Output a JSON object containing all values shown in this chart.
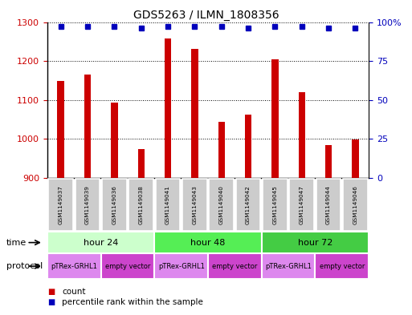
{
  "title": "GDS5263 / ILMN_1808356",
  "samples": [
    "GSM1149037",
    "GSM1149039",
    "GSM1149036",
    "GSM1149038",
    "GSM1149041",
    "GSM1149043",
    "GSM1149040",
    "GSM1149042",
    "GSM1149045",
    "GSM1149047",
    "GSM1149044",
    "GSM1149046"
  ],
  "counts": [
    1148,
    1165,
    1093,
    975,
    1258,
    1232,
    1045,
    1063,
    1205,
    1120,
    985,
    998
  ],
  "percentiles": [
    97,
    97,
    97,
    96,
    97,
    97,
    97,
    96,
    97,
    97,
    96,
    96
  ],
  "ylim_left": [
    900,
    1300
  ],
  "ylim_right": [
    0,
    100
  ],
  "bar_color": "#cc0000",
  "dot_color": "#0000bb",
  "time_groups": [
    {
      "label": "hour 24",
      "start": 0,
      "end": 4,
      "color": "#ccffcc"
    },
    {
      "label": "hour 48",
      "start": 4,
      "end": 8,
      "color": "#55ee55"
    },
    {
      "label": "hour 72",
      "start": 8,
      "end": 12,
      "color": "#44cc44"
    }
  ],
  "protocol_groups": [
    {
      "label": "pTRex-GRHL1",
      "start": 0,
      "end": 2,
      "color": "#dd88ee"
    },
    {
      "label": "empty vector",
      "start": 2,
      "end": 4,
      "color": "#cc44cc"
    },
    {
      "label": "pTRex-GRHL1",
      "start": 4,
      "end": 6,
      "color": "#dd88ee"
    },
    {
      "label": "empty vector",
      "start": 6,
      "end": 8,
      "color": "#cc44cc"
    },
    {
      "label": "pTRex-GRHL1",
      "start": 8,
      "end": 10,
      "color": "#dd88ee"
    },
    {
      "label": "empty vector",
      "start": 10,
      "end": 12,
      "color": "#cc44cc"
    }
  ],
  "background_color": "#ffffff",
  "sample_box_color": "#cccccc",
  "left_axis_color": "#cc0000",
  "right_axis_color": "#0000bb",
  "bar_width": 0.25
}
